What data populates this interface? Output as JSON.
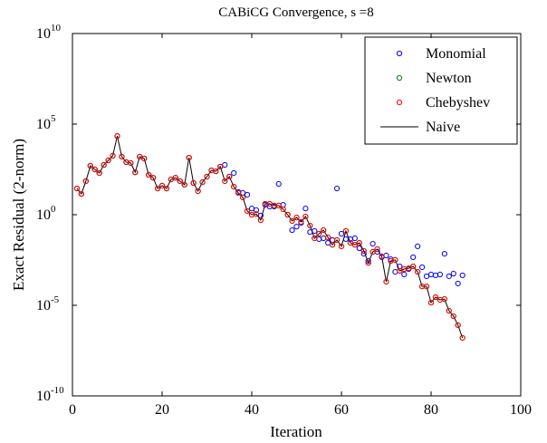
{
  "chart_data": {
    "type": "scatter",
    "title": "CABiCG Convergence, s =8",
    "xlabel": "Iteration",
    "ylabel": "Exact Residual (2-norm)",
    "yscale": "log",
    "legend": "northeast",
    "xlim": [
      0,
      100
    ],
    "xticks": [
      0,
      20,
      40,
      60,
      80,
      100
    ],
    "ylim": [
      1e-10,
      10000000000.0
    ],
    "yticks": [
      {
        "value": 1e-10,
        "label": "10^-10"
      },
      {
        "value": 1e-05,
        "label": "10^-5"
      },
      {
        "value": 1,
        "label": "10^0"
      },
      {
        "value": 100000.0,
        "label": "10^5"
      },
      {
        "value": 10000000000.0,
        "label": "10^10"
      }
    ],
    "x": [
      1,
      2,
      3,
      4,
      5,
      6,
      7,
      8,
      9,
      10,
      11,
      12,
      13,
      14,
      15,
      16,
      17,
      18,
      19,
      20,
      21,
      22,
      23,
      24,
      25,
      26,
      27,
      28,
      29,
      30,
      31,
      32,
      33,
      34,
      35,
      36,
      37,
      38,
      39,
      40,
      41,
      42,
      43,
      44,
      45,
      46,
      47,
      48,
      49,
      50,
      51,
      52,
      53,
      54,
      55,
      56,
      57,
      58,
      59,
      60,
      61,
      62,
      63,
      64,
      65,
      66,
      67,
      68,
      69,
      70,
      71,
      72,
      73,
      74,
      75,
      76,
      77,
      78,
      79,
      80,
      81,
      82,
      83,
      84,
      85,
      86,
      87
    ],
    "series": [
      {
        "name": "Monomial",
        "color": "#0000ff",
        "style": "marker",
        "values": [
          28,
          14,
          71,
          500,
          316,
          200,
          560,
          1000,
          1800,
          22000,
          1600,
          800,
          710,
          220,
          1600,
          1260,
          160,
          110,
          28,
          40,
          28,
          89,
          110,
          71,
          45,
          1400,
          56,
          20,
          63,
          126,
          280,
          250,
          450,
          560,
          126,
          200,
          18,
          16,
          12.6,
          2.2,
          1.8,
          0.9,
          3.5,
          2.8,
          2.8,
          50,
          3.5,
          1,
          0.14,
          0.22,
          0.35,
          2.2,
          0.11,
          0.126,
          0.045,
          0.05,
          0.028,
          0.04,
          28,
          0.089,
          0.045,
          0.045,
          0.05,
          0.014,
          0.007,
          0.0028,
          0.025,
          0.0089,
          0.0045,
          0.0056,
          0.0035,
          0.0007,
          0.0014,
          0.0005,
          0.001,
          0.0045,
          0.018,
          0.00126,
          0.0004,
          0.0005,
          0.00045,
          0.0005,
          0.007,
          0.0004,
          0.00056,
          0.00016,
          0.00045
        ]
      },
      {
        "name": "Newton",
        "color": "#008000",
        "style": "marker",
        "values": [
          28,
          14,
          71,
          500,
          316,
          200,
          560,
          1000,
          1800,
          22000,
          1600,
          800,
          710,
          220,
          1600,
          1260,
          160,
          110,
          28,
          40,
          28,
          89,
          110,
          71,
          45,
          1400,
          56,
          20,
          63,
          126,
          280,
          250,
          450,
          71,
          126,
          35,
          16,
          9,
          1.6,
          1,
          1.1,
          0.5,
          4,
          4,
          3.2,
          3.2,
          2,
          1,
          0.45,
          0.7,
          0.4,
          0.8,
          0.25,
          0.05,
          0.089,
          0.14,
          0.056,
          0.022,
          0.04,
          0.018,
          0.126,
          0.028,
          0.022,
          0.028,
          0.01,
          0.0022,
          0.0089,
          0.0126,
          0.005,
          0.0002,
          0.0028,
          0.0032,
          0.0008,
          0.001,
          0.0011,
          0.0014,
          0.0007,
          0.00011,
          0.00011,
          1.4e-05,
          2.8e-05,
          2e-05,
          2.2e-05,
          5e-06,
          2.5e-06,
          8e-07,
          1.6e-07
        ]
      },
      {
        "name": "Chebyshev",
        "color": "#ff0000",
        "style": "marker",
        "values": [
          28,
          14,
          71,
          500,
          316,
          200,
          560,
          1000,
          1800,
          22000,
          1600,
          800,
          710,
          220,
          1600,
          1260,
          160,
          110,
          28,
          40,
          28,
          89,
          110,
          71,
          45,
          1400,
          56,
          20,
          63,
          126,
          280,
          250,
          450,
          71,
          126,
          35,
          16,
          9,
          1.6,
          1,
          1.1,
          0.5,
          4,
          4,
          3.2,
          3.2,
          2,
          1,
          0.45,
          0.7,
          0.4,
          0.8,
          0.25,
          0.05,
          0.089,
          0.14,
          0.056,
          0.022,
          0.04,
          0.018,
          0.126,
          0.028,
          0.022,
          0.028,
          0.01,
          0.0022,
          0.0089,
          0.0126,
          0.005,
          0.0002,
          0.0028,
          0.0032,
          0.0008,
          0.001,
          0.0011,
          0.0014,
          0.0007,
          0.00011,
          0.00011,
          1.4e-05,
          2.8e-05,
          2e-05,
          2.2e-05,
          5e-06,
          2.5e-06,
          8e-07,
          1.6e-07
        ]
      },
      {
        "name": "Naive",
        "color": "#000000",
        "style": "line",
        "values": [
          28,
          14,
          71,
          500,
          316,
          200,
          560,
          1000,
          1800,
          22000,
          1600,
          800,
          710,
          220,
          1600,
          1260,
          160,
          110,
          28,
          40,
          28,
          89,
          110,
          71,
          45,
          1400,
          56,
          20,
          63,
          126,
          280,
          250,
          450,
          71,
          126,
          35,
          16,
          9,
          1.6,
          1,
          1.1,
          0.5,
          4,
          4,
          3.2,
          3.2,
          2,
          1,
          0.45,
          0.7,
          0.4,
          0.8,
          0.25,
          0.05,
          0.089,
          0.14,
          0.056,
          0.022,
          0.04,
          0.018,
          0.126,
          0.028,
          0.022,
          0.028,
          0.01,
          0.0022,
          0.0089,
          0.0126,
          0.005,
          0.0002,
          0.0028,
          0.0032,
          0.0008,
          0.001,
          0.0011,
          0.0014,
          0.0007,
          0.00011,
          0.00011,
          1.4e-05,
          2.8e-05,
          2e-05,
          2.2e-05,
          5e-06,
          2.5e-06,
          8e-07,
          1.6e-07
        ]
      }
    ]
  }
}
